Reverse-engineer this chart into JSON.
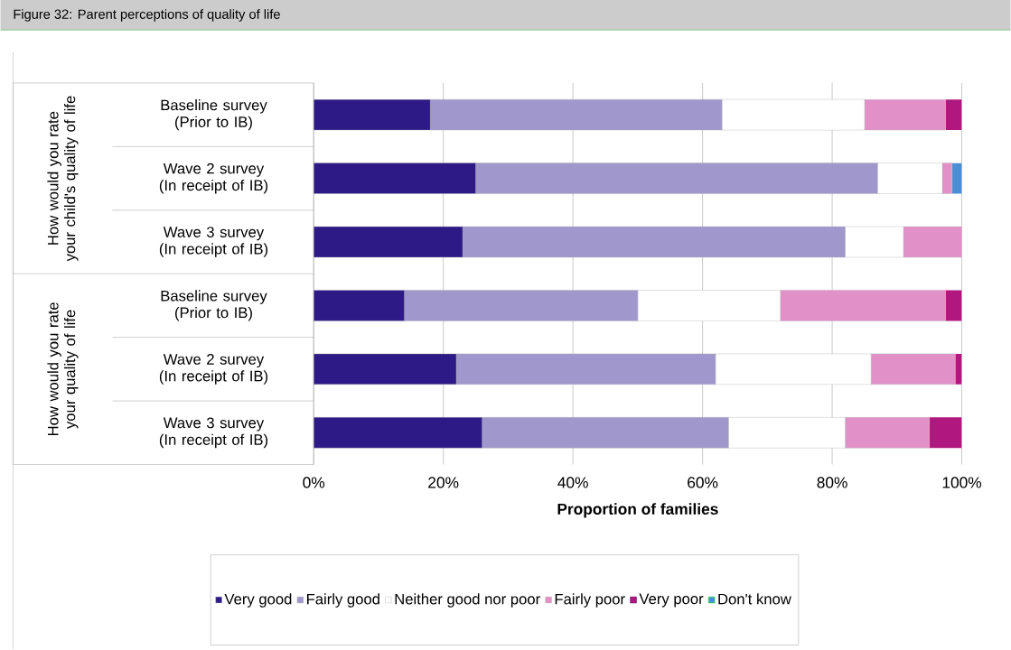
{
  "chart_data": {
    "type": "bar",
    "orientation": "horizontal",
    "stacked": true,
    "title": "Figure 32: Parent perceptions of quality of life",
    "xlabel": "Proportion of families",
    "categories": [
      "Baseline survey (Prior to IB)",
      "Wave 2 survey (In receipt of IB)",
      "Wave 3 survey (In receipt of IB)",
      "Baseline survey (Prior to IB)",
      "Wave 2 survey (In receipt of IB)",
      "Wave 3 survey (In receipt of IB)"
    ],
    "annotations": [
      "How would you rate your child's quality of life",
      "How would you rate your quality of life"
    ],
    "series": [
      {
        "name": "Very good",
        "color": "#2e1a87",
        "values": [
          18,
          25,
          23,
          14,
          22,
          26
        ]
      },
      {
        "name": "Fairly good",
        "color": "#a097cc",
        "values": [
          45,
          62,
          59,
          36,
          40,
          38
        ]
      },
      {
        "name": "Neither good nor poor",
        "color": "#ffffff",
        "values": [
          22,
          10,
          9,
          22,
          24,
          18
        ]
      },
      {
        "name": "Fairly poor",
        "color": "#e291c8",
        "values": [
          12.5,
          1.5,
          9,
          25.5,
          13,
          13
        ]
      },
      {
        "name": "Very poor",
        "color": "#b0177f",
        "values": [
          2.5,
          null,
          null,
          2.5,
          1,
          5
        ]
      },
      {
        "name": "Don't know",
        "color": "#4a8fd6",
        "values": [
          null,
          1.5,
          null,
          null,
          null,
          null
        ]
      }
    ],
    "xlim": [
      0,
      100
    ],
    "xticks": [
      {
        "value": 0,
        "label": "0%"
      },
      {
        "value": 20,
        "label": "20%"
      },
      {
        "value": 40,
        "label": "40%"
      },
      {
        "value": 60,
        "label": "60%"
      },
      {
        "value": 80,
        "label": "80%"
      },
      {
        "value": 100,
        "label": "100%"
      }
    ],
    "grid": "x",
    "legend": "bottom"
  }
}
